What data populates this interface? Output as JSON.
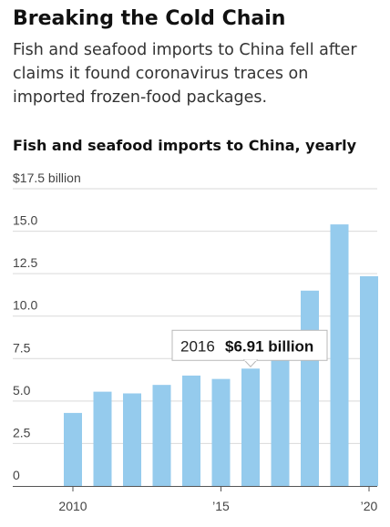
{
  "headline": "Breaking the Cold Chain",
  "dek": "Fish and seafood imports to China fell after claims it found coronavirus traces on imported frozen-food packages.",
  "chart_data": {
    "type": "bar",
    "title": "Fish and seafood imports to China, yearly",
    "ylabel": "$17.5 billion",
    "categories": [
      "2010",
      "2011",
      "2012",
      "2013",
      "2014",
      "2015",
      "2016",
      "2017",
      "2018",
      "2019",
      "2020"
    ],
    "values": [
      4.3,
      5.55,
      5.45,
      5.95,
      6.5,
      6.3,
      6.91,
      7.4,
      11.5,
      15.4,
      12.35
    ],
    "ylim": [
      0,
      17.5
    ],
    "yticks": [
      0,
      2.5,
      5.0,
      7.5,
      10.0,
      12.5,
      15.0,
      17.5
    ],
    "ytick_labels": [
      "0",
      "2.5",
      "5.0",
      "7.5",
      "10.0",
      "12.5",
      "15.0",
      "$17.5 billion"
    ],
    "xticks": [
      {
        "category": "2010",
        "label": "2010"
      },
      {
        "category": "2015",
        "label": "’15"
      },
      {
        "category": "2020",
        "label": "’20"
      }
    ],
    "grid": true,
    "bar_color": "#95cbed",
    "tooltip": {
      "category": "2016",
      "year_label": "2016",
      "value_label": "$6.91 billion"
    }
  }
}
